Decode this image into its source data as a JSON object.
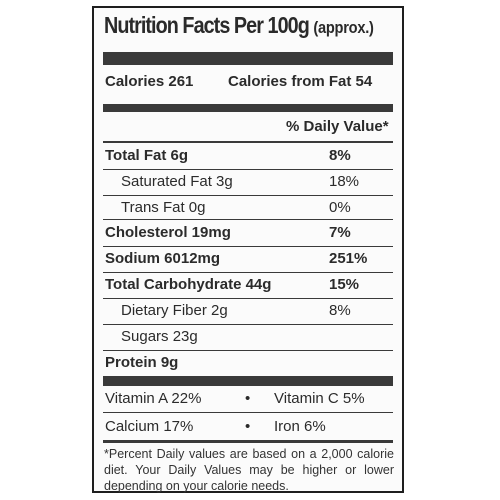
{
  "title": {
    "main": "Nutrition Facts Per 100g",
    "qualifier": "(approx.)"
  },
  "calories": {
    "calories": "Calories 261",
    "from_fat": "Calories from Fat 54"
  },
  "daily_value_header": "% Daily Value*",
  "nutrients": [
    {
      "name": "Total Fat 6g",
      "dv": "8%"
    },
    {
      "name": "Saturated Fat 3g",
      "dv": "18%"
    },
    {
      "name": "Trans Fat 0g",
      "dv": "0%"
    },
    {
      "name": "Cholesterol 19mg",
      "dv": "7%"
    },
    {
      "name": "Sodium 6012mg",
      "dv": "251%"
    },
    {
      "name": "Total Carbohydrate 44g",
      "dv": "15%"
    },
    {
      "name": "Dietary Fiber 2g",
      "dv": "8%"
    },
    {
      "name": "Sugars 23g",
      "dv": ""
    },
    {
      "name": "Protein 9g",
      "dv": ""
    }
  ],
  "vitamins": {
    "vitamin_a": "Vitamin A  22%",
    "vitamin_c": "Vitamin C 5%",
    "calcium": "Calcium  17%",
    "iron": "Iron  6%",
    "separator": "•"
  },
  "footnote": "*Percent Daily values are based on a 2,000 calorie diet. Your Daily Values may be higher or lower depending on your calorie needs."
}
